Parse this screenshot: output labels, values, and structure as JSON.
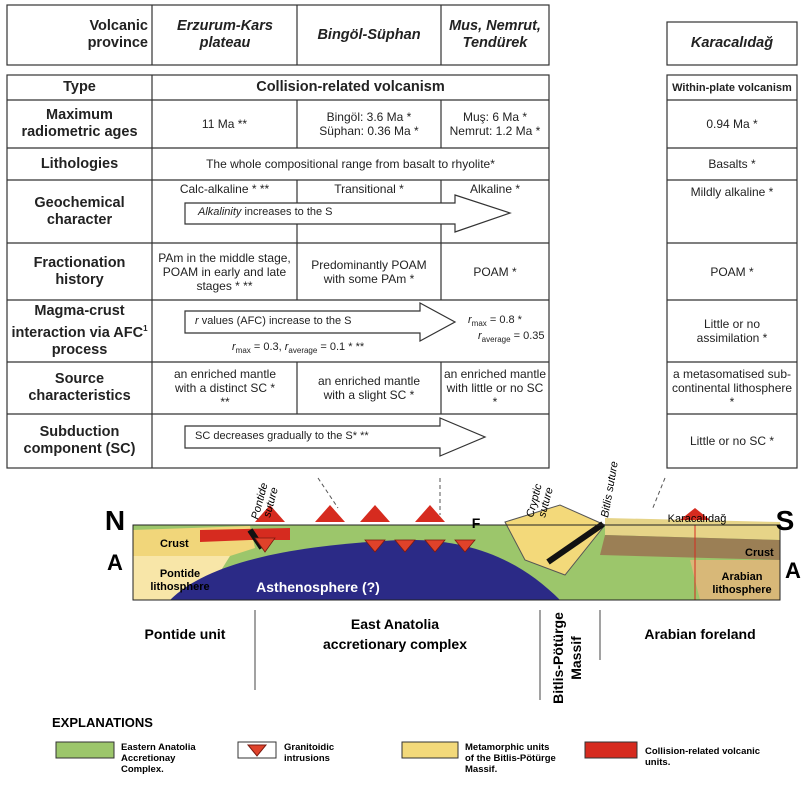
{
  "header": {
    "corner": "Volcanic province",
    "columns": [
      "Erzurum-Kars plateau",
      "Bingöl-Süphan",
      "Mus, Nemrut, Tendürek"
    ],
    "right_column": "Karacalıdağ"
  },
  "rows": [
    {
      "label": "Type",
      "span": "Collision-related volcanism",
      "right": "Within-plate volcanism"
    },
    {
      "label": "Maximum radiometric ages",
      "cells": [
        "11 Ma **",
        [
          "Bingöl: 3.6 Ma *",
          "Süphan: 0.36 Ma *"
        ],
        [
          "Muş: 6 Ma *",
          "Nemrut: 1.2 Ma *"
        ]
      ],
      "right": "0.94 Ma *"
    },
    {
      "label": "Lithologies",
      "span": "The whole compositional range from basalt to rhyolite*",
      "right": "Basalts *"
    },
    {
      "label": "Geochemical character",
      "cells": [
        "Calc-alkaline *  **",
        "Transitional *",
        "Alkaline *"
      ],
      "arrow": [
        "Alkalinity",
        " increases to the S"
      ],
      "right": "Mildly alkaline *"
    },
    {
      "label": "Fractionation history",
      "cells": [
        "PAm in the middle stage,  POAM in early and late stages *  **",
        "Predominantly POAM with some PAm  *",
        "POAM *"
      ],
      "right": "POAM *"
    },
    {
      "label": [
        "Magma-crust interaction via AFC",
        "1",
        " process"
      ],
      "arrow": [
        "r",
        " values (AFC) increase to the S"
      ],
      "left_note": [
        "r",
        "max",
        " = 0.3,  ",
        "r",
        "average",
        " = 0.1 *  **"
      ],
      "right_note": [
        [
          "r",
          "max",
          " = 0.8 *"
        ],
        [
          "r",
          "average",
          " = 0.35"
        ]
      ],
      "right": "Little or no assimilation *"
    },
    {
      "label": "Source characteristics",
      "cells": [
        "an enriched mantle with a distinct SC * **",
        "an enriched mantle with a slight SC *",
        "an enriched mantle with little or no SC *"
      ],
      "right": "a metasomatised sub-continental lithosphere *"
    },
    {
      "label": "Subduction component (SC)",
      "arrow": "SC decreases gradually to the S* **",
      "right": "Little or no SC *"
    }
  ],
  "cross_section": {
    "north": "N",
    "south": "S",
    "section_left": "A",
    "section_right": "A",
    "sutures": [
      [
        "Pontide",
        "suture"
      ],
      [
        "Cryptic",
        "suture"
      ],
      "Bitlis suture"
    ],
    "locality": "Karacalıdağ",
    "fault": "F",
    "crust_left": "Crust",
    "crust_right": "Crust",
    "pontide_lithosphere": [
      "Pontide",
      "lithosphere"
    ],
    "arabian_lithosphere": [
      "Arabian",
      "lithosphere"
    ],
    "asthenosphere": "Asthenosphere (?)"
  },
  "units": [
    "Pontide unit",
    [
      "East Anatolia",
      "accretionary complex"
    ],
    [
      "Bitlis-Pötürge",
      "Massif"
    ],
    "Arabian foreland"
  ],
  "legend": {
    "title": "EXPLANATIONS",
    "items": [
      [
        "Eastern Anatolia",
        "Accretionay",
        "Complex."
      ],
      [
        "Granitoidic",
        "intrusions"
      ],
      [
        "Metamorphic units",
        "of the Bitlis-Pötürge",
        "Massif."
      ],
      [
        "Collision-related volcanic",
        "units."
      ]
    ]
  }
}
